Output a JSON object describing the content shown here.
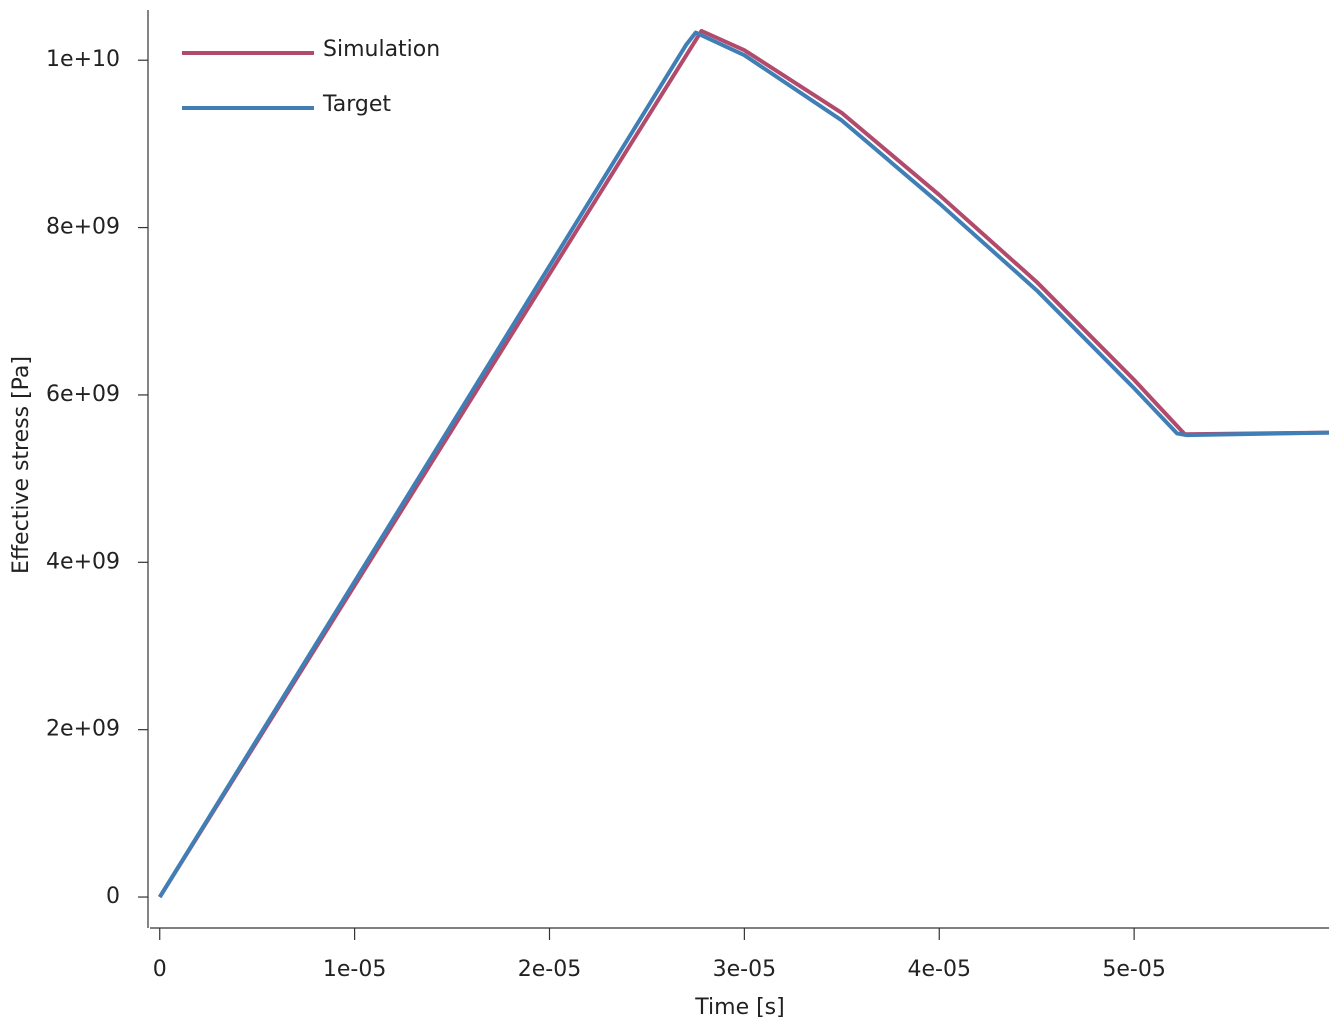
{
  "chart_data": {
    "type": "line",
    "xlabel": "Time [s]",
    "ylabel": "Effective stress [Pa]",
    "xlim": [
      -5e-07,
      6e-05
    ],
    "ylim": [
      -370000000.0,
      10600000000.0
    ],
    "xticks": [
      0,
      {
        "value": 1e-05,
        "label": "1e-05"
      },
      {
        "value": 2e-05,
        "label": "2e-05"
      },
      {
        "value": 3e-05,
        "label": "3e-05"
      },
      {
        "value": 4e-05,
        "label": "4e-05"
      },
      {
        "value": 5e-05,
        "label": "5e-05"
      }
    ],
    "yticks": [
      0,
      {
        "value": 2000000000.0,
        "label": "2e+09"
      },
      {
        "value": 4000000000.0,
        "label": "4e+09"
      },
      {
        "value": 6000000000.0,
        "label": "6e+09"
      },
      {
        "value": 8000000000.0,
        "label": "8e+09"
      },
      {
        "value": 10000000000.0,
        "label": "1e+10"
      }
    ],
    "legend": "upper-left",
    "series": [
      {
        "name": "Simulation",
        "color": "#b24a6c",
        "x": [
          0,
          2.78e-05,
          3e-05,
          3.5e-05,
          4e-05,
          4.5e-05,
          5e-05,
          5.26e-05,
          6e-05
        ],
        "values": [
          0,
          10350000000.0,
          10120000000.0,
          9370000000.0,
          8390000000.0,
          7350000000.0,
          6180000000.0,
          5530000000.0,
          5550000000.0
        ]
      },
      {
        "name": "Target",
        "color": "#3f7fb6",
        "x": [
          0,
          2.7e-05,
          2.75e-05,
          3e-05,
          3.5e-05,
          4e-05,
          4.5e-05,
          5e-05,
          5.22e-05,
          5.27e-05,
          6e-05
        ],
        "values": [
          0,
          10180000000.0,
          10330000000.0,
          10060000000.0,
          9280000000.0,
          8290000000.0,
          7250000000.0,
          6080000000.0,
          5540000000.0,
          5520000000.0,
          5550000000.0
        ]
      }
    ]
  }
}
